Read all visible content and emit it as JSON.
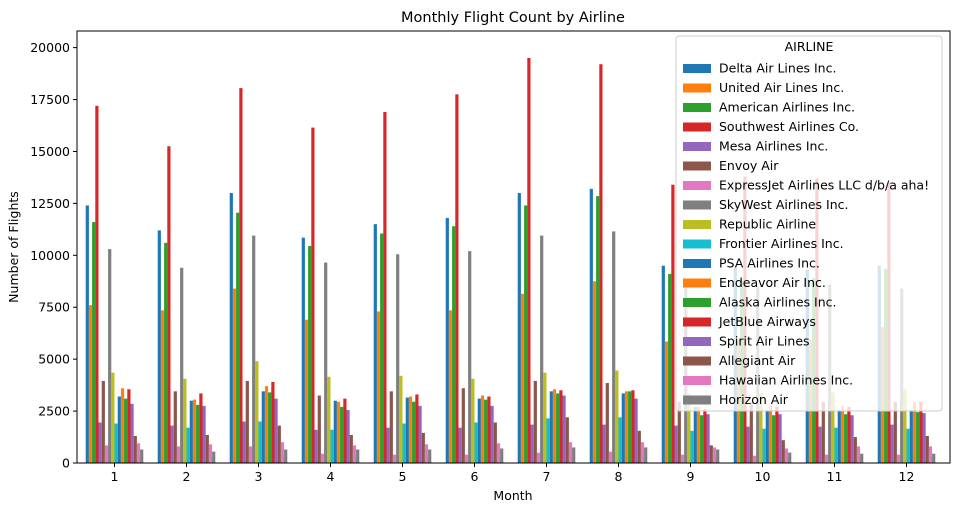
{
  "chart_data": {
    "type": "bar",
    "title": "Monthly Flight Count by Airline",
    "xlabel": "Month",
    "ylabel": "Number of Flights",
    "ylim": [
      0,
      20800
    ],
    "yticks": [
      0,
      2500,
      5000,
      7500,
      10000,
      12500,
      15000,
      17500,
      20000
    ],
    "grid": false,
    "legend_title": "AIRLINE",
    "legend_placement": "top-right",
    "categories": [
      "1",
      "2",
      "3",
      "4",
      "5",
      "6",
      "7",
      "8",
      "9",
      "10",
      "11",
      "12"
    ],
    "series": [
      {
        "name": "Delta Air Lines Inc.",
        "color": "#1f77b4",
        "values": [
          12400,
          11200,
          13000,
          10850,
          11500,
          11800,
          13000,
          13200,
          9500,
          9400,
          9300,
          9500
        ]
      },
      {
        "name": "United Air Lines Inc.",
        "color": "#ff7f0e",
        "values": [
          7600,
          7350,
          8400,
          6900,
          7300,
          7350,
          8150,
          8750,
          5850,
          5900,
          5950,
          6550
        ]
      },
      {
        "name": "American Airlines Inc.",
        "color": "#2ca02c",
        "values": [
          11600,
          10600,
          12050,
          10450,
          11050,
          11400,
          12400,
          12850,
          9100,
          8800,
          8900,
          9350
        ]
      },
      {
        "name": "Southwest Airlines Co.",
        "color": "#d62728",
        "values": [
          17200,
          15250,
          18050,
          16150,
          16900,
          17750,
          19500,
          19200,
          13400,
          13800,
          13700,
          13500
        ]
      },
      {
        "name": "Mesa Airlines Inc.",
        "color": "#9467bd",
        "values": [
          1950,
          1800,
          2000,
          1600,
          1700,
          1700,
          1850,
          1850,
          1800,
          1750,
          1750,
          1850
        ]
      },
      {
        "name": "Envoy Air",
        "color": "#8c564b",
        "values": [
          3950,
          3450,
          3950,
          3250,
          3450,
          3600,
          3950,
          3850,
          2950,
          2900,
          2950,
          2950
        ]
      },
      {
        "name": "ExpressJet Airlines LLC d/b/a aha!",
        "color": "#e377c2",
        "values": [
          850,
          800,
          800,
          450,
          400,
          400,
          500,
          550,
          400,
          350,
          400,
          400
        ]
      },
      {
        "name": "SkyWest Airlines Inc.",
        "color": "#7f7f7f",
        "values": [
          10300,
          9400,
          10950,
          9650,
          10050,
          10200,
          10950,
          11150,
          8450,
          8500,
          8600,
          8400
        ]
      },
      {
        "name": "Republic Airline",
        "color": "#bcbd22",
        "values": [
          4350,
          4050,
          4900,
          4150,
          4200,
          4050,
          4350,
          4450,
          3350,
          3350,
          3400,
          3550
        ]
      },
      {
        "name": "Frontier Airlines Inc.",
        "color": "#17becf",
        "values": [
          1900,
          1700,
          2000,
          1600,
          1900,
          1950,
          2150,
          2200,
          1550,
          1650,
          1700,
          1650
        ]
      },
      {
        "name": "PSA Airlines Inc.",
        "color": "#1f77b4",
        "values": [
          3200,
          3000,
          3450,
          3000,
          3150,
          3100,
          3450,
          3350,
          2700,
          2500,
          2500,
          2500
        ]
      },
      {
        "name": "Endeavor Air Inc.",
        "color": "#ff7f0e",
        "values": [
          3600,
          3050,
          3700,
          2950,
          3200,
          3250,
          3550,
          3450,
          2700,
          2750,
          2750,
          2950
        ]
      },
      {
        "name": "Alaska Airlines Inc.",
        "color": "#2ca02c",
        "values": [
          3100,
          2800,
          3400,
          2700,
          2950,
          3050,
          3350,
          3450,
          2300,
          2300,
          2350,
          2450
        ]
      },
      {
        "name": "JetBlue Airways",
        "color": "#d62728",
        "values": [
          3550,
          3350,
          3900,
          3100,
          3300,
          3200,
          3500,
          3500,
          2600,
          2700,
          2700,
          2950
        ]
      },
      {
        "name": "Spirit Air Lines",
        "color": "#9467bd",
        "values": [
          2850,
          2750,
          3100,
          2550,
          2750,
          2750,
          3250,
          3100,
          2350,
          2350,
          2300,
          2400
        ]
      },
      {
        "name": "Allegiant Air",
        "color": "#8c564b",
        "values": [
          1300,
          1350,
          1800,
          1350,
          1450,
          1950,
          2200,
          1550,
          850,
          1100,
          1250,
          1300
        ]
      },
      {
        "name": "Hawaiian Airlines Inc.",
        "color": "#e377c2",
        "values": [
          950,
          900,
          1000,
          850,
          900,
          950,
          1000,
          1000,
          750,
          700,
          800,
          800
        ]
      },
      {
        "name": "Horizon Air",
        "color": "#7f7f7f",
        "values": [
          650,
          550,
          650,
          650,
          650,
          700,
          750,
          750,
          650,
          500,
          450,
          450
        ]
      }
    ]
  }
}
